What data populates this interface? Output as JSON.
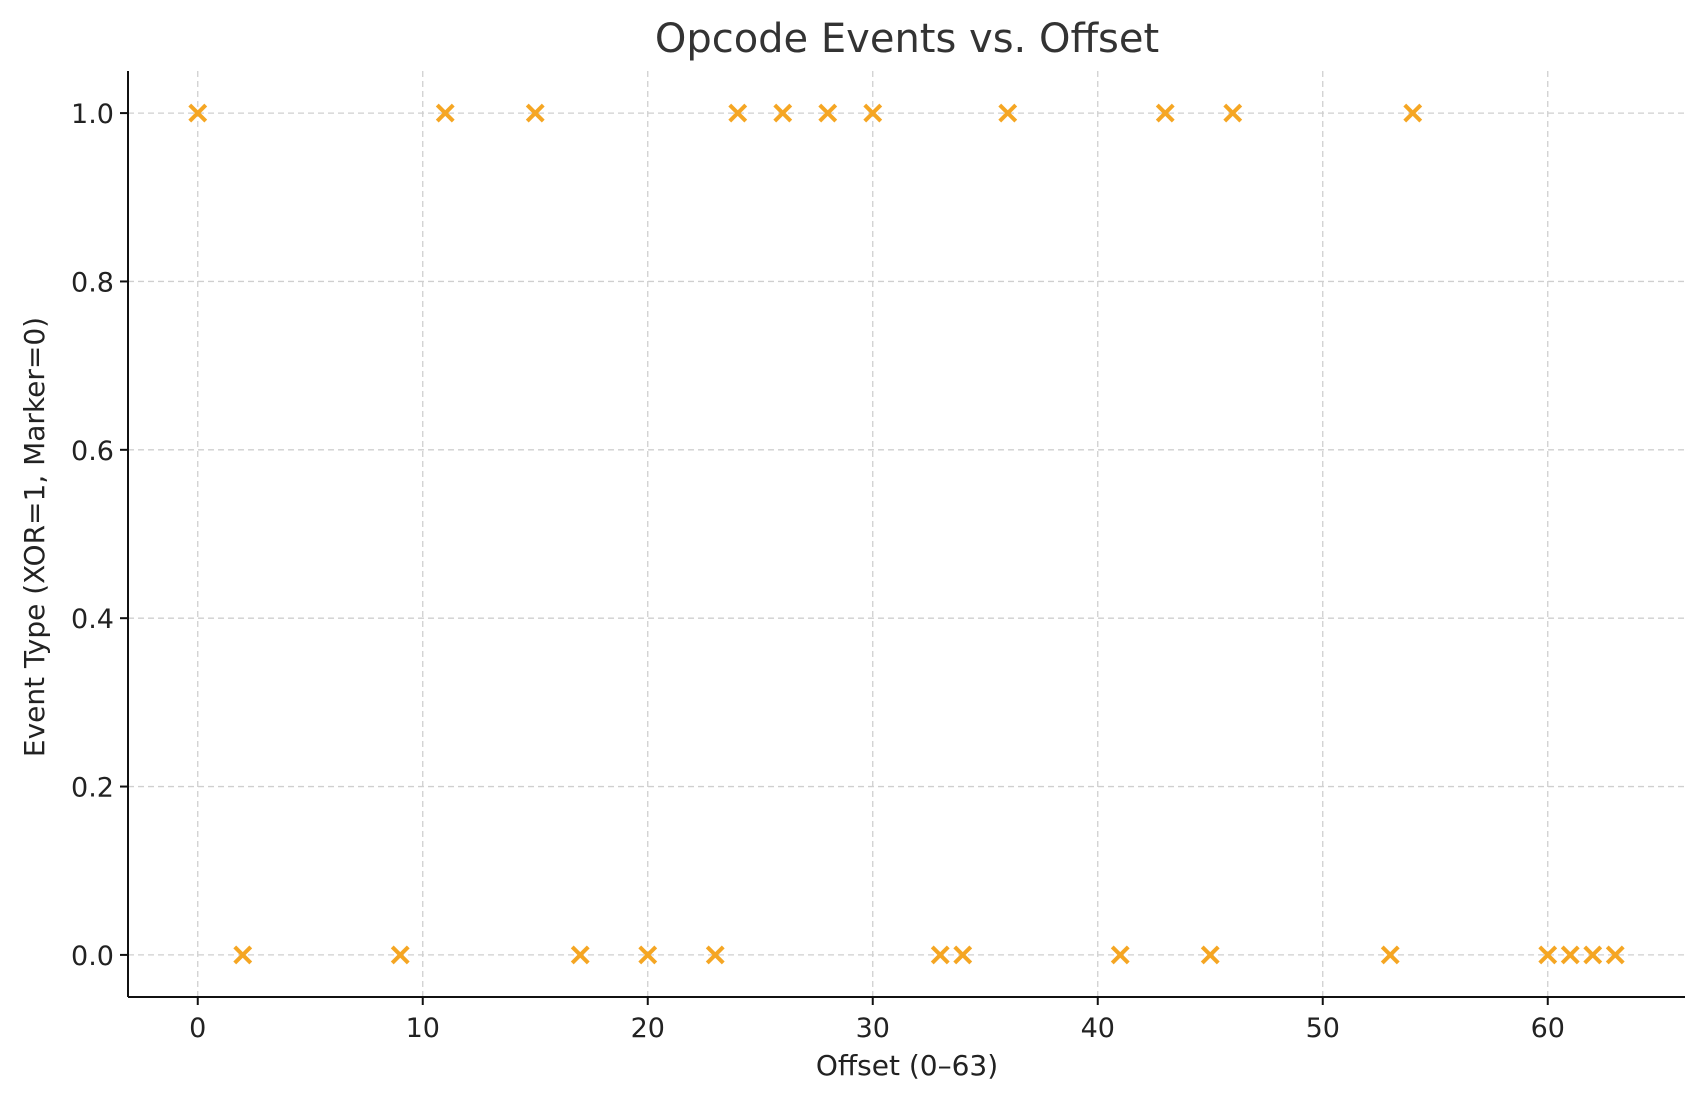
{
  "chart_data": {
    "type": "scatter",
    "title": "Opcode Events vs. Offset",
    "xlabel": "Offset (0–63)",
    "ylabel": "Event Type (XOR=1, Marker=0)",
    "xlim": [
      -3.1,
      66.1
    ],
    "ylim": [
      -0.05,
      1.05
    ],
    "xticks": [
      0,
      10,
      20,
      30,
      40,
      50,
      60
    ],
    "xtick_labels": [
      "0",
      "10",
      "20",
      "30",
      "40",
      "50",
      "60"
    ],
    "yticks": [
      0.0,
      0.2,
      0.4,
      0.6,
      0.8,
      1.0
    ],
    "ytick_labels": [
      "0.0",
      "0.2",
      "0.4",
      "0.6",
      "0.8",
      "1.0"
    ],
    "grid": true,
    "marker": "x",
    "color": "#f5a623",
    "points": [
      {
        "x": 0,
        "y": 1
      },
      {
        "x": 2,
        "y": 0
      },
      {
        "x": 9,
        "y": 0
      },
      {
        "x": 11,
        "y": 1
      },
      {
        "x": 15,
        "y": 1
      },
      {
        "x": 17,
        "y": 0
      },
      {
        "x": 20,
        "y": 0
      },
      {
        "x": 23,
        "y": 0
      },
      {
        "x": 24,
        "y": 1
      },
      {
        "x": 26,
        "y": 1
      },
      {
        "x": 28,
        "y": 1
      },
      {
        "x": 30,
        "y": 1
      },
      {
        "x": 33,
        "y": 0
      },
      {
        "x": 34,
        "y": 0
      },
      {
        "x": 36,
        "y": 1
      },
      {
        "x": 41,
        "y": 0
      },
      {
        "x": 43,
        "y": 1
      },
      {
        "x": 45,
        "y": 0
      },
      {
        "x": 46,
        "y": 1
      },
      {
        "x": 53,
        "y": 0
      },
      {
        "x": 54,
        "y": 1
      },
      {
        "x": 60,
        "y": 0
      },
      {
        "x": 61,
        "y": 0
      },
      {
        "x": 62,
        "y": 0
      },
      {
        "x": 63,
        "y": 0
      }
    ]
  }
}
